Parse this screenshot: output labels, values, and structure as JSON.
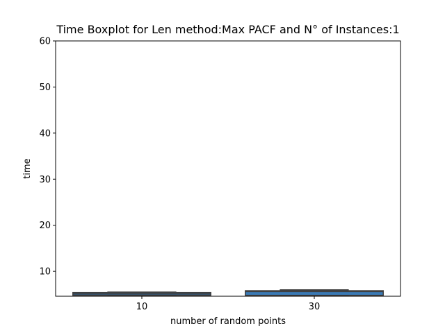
{
  "chart_data": {
    "type": "boxplot",
    "title": "Time Boxplot for Len method:Max PACF and N° of Instances:1",
    "xlabel": "number of random points",
    "ylabel": "time",
    "categories": [
      "10",
      "30"
    ],
    "ylim": [
      4.6,
      60
    ],
    "yticks": [
      10,
      20,
      30,
      40,
      50,
      60
    ],
    "grid": false,
    "boxes": [
      {
        "category": "10",
        "whisker_low": 4.8,
        "q1": 4.8,
        "median": 5.1,
        "q3": 5.4,
        "whisker_high": 5.5,
        "color": "#2f5f8a"
      },
      {
        "category": "30",
        "whisker_low": 4.8,
        "q1": 4.8,
        "median": 5.6,
        "q3": 5.8,
        "whisker_high": 6.0,
        "color": "#3a7ab5"
      }
    ]
  }
}
